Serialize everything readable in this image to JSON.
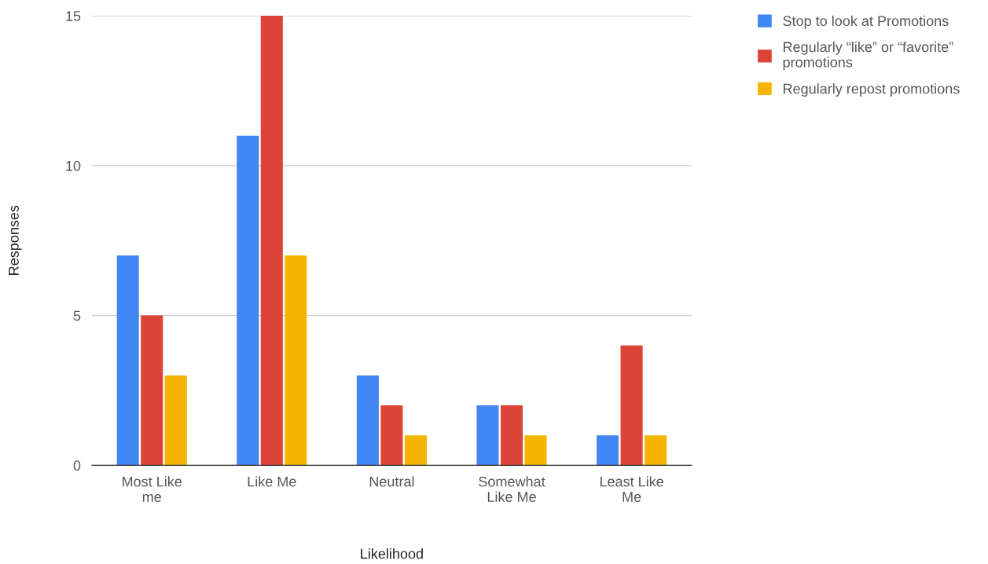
{
  "chart_data": {
    "type": "bar",
    "xlabel": "Likelihood",
    "ylabel": "Responses",
    "categories": [
      "Most Like me",
      "Like Me",
      "Neutral",
      "Somewhat Like Me",
      "Least Like Me"
    ],
    "series": [
      {
        "name": "Stop to look at Promotions",
        "color": "#4285f4",
        "values": [
          7,
          11,
          3,
          2,
          1
        ]
      },
      {
        "name": "Regularly “like” or “favorite” promotions",
        "color": "#db4437",
        "values": [
          5,
          15,
          2,
          2,
          4
        ]
      },
      {
        "name": "Regularly repost promotions",
        "color": "#f4b400",
        "values": [
          3,
          7,
          1,
          1,
          1
        ]
      }
    ],
    "ylim": [
      0,
      15
    ],
    "yticks": [
      0,
      5,
      10,
      15
    ],
    "grid": "y",
    "legend": "top right"
  }
}
